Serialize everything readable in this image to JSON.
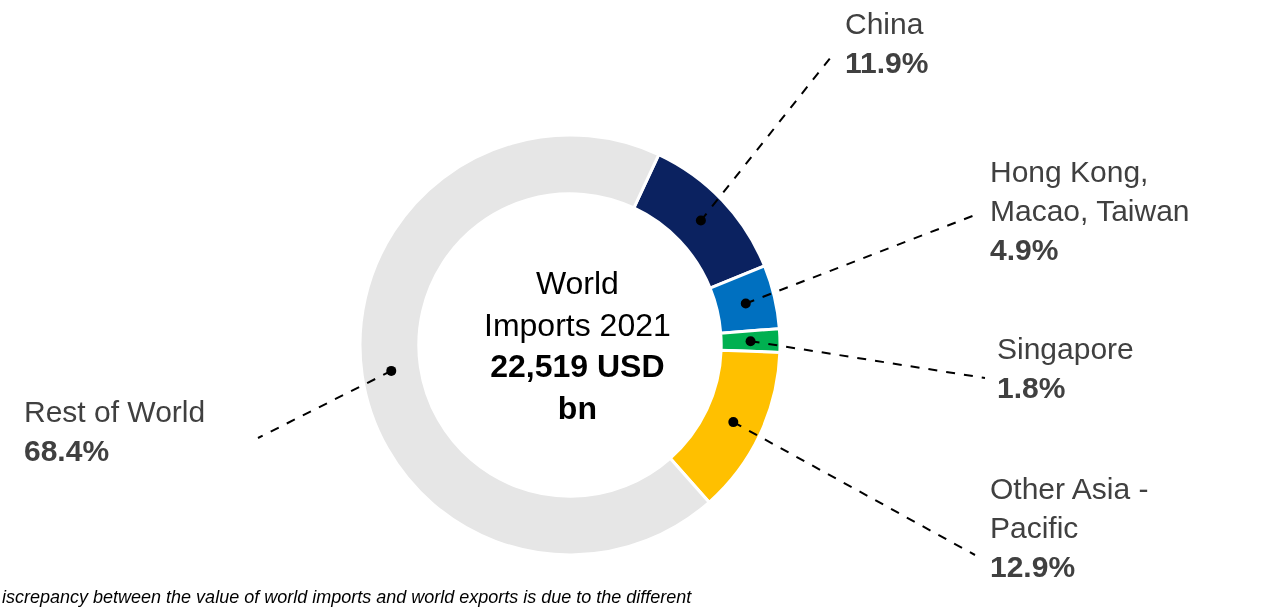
{
  "chart_data": {
    "type": "donut",
    "title": "World Imports 2021",
    "subtitle": "22,519 USD bn",
    "categories": [
      "China",
      "Hong Kong, Macao, Taiwan",
      "Singapore",
      "Other Asia - Pacific",
      "Rest of World"
    ],
    "values": [
      11.9,
      4.9,
      1.8,
      12.9,
      68.4
    ],
    "value_labels": [
      "11.9%",
      "4.9%",
      "1.8%",
      "12.9%",
      "68.4%"
    ],
    "colors": [
      "#0b2260",
      "#0070c0",
      "#00b050",
      "#ffc000",
      "#e6e6e6"
    ],
    "legend": false,
    "annotations": [
      "iscrepancy between the value of world imports and world exports is due to the different"
    ]
  }
}
